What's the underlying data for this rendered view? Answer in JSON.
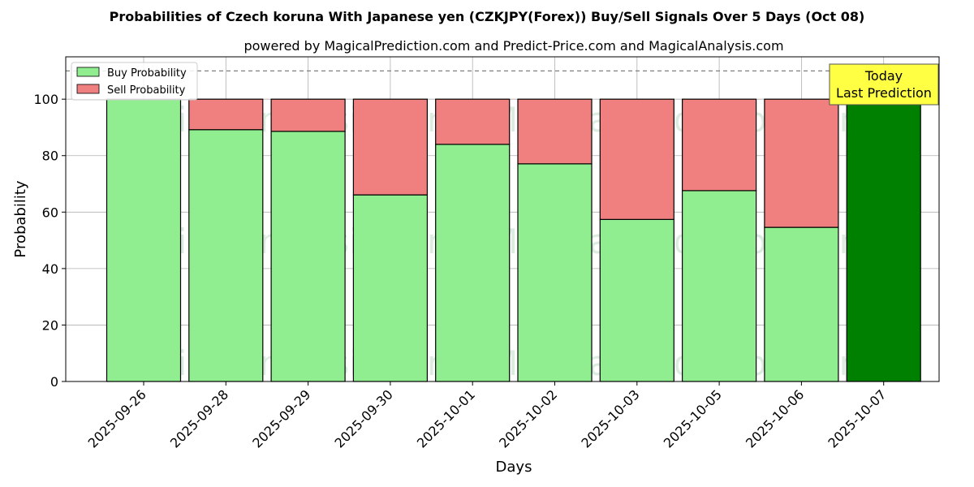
{
  "chart_data": {
    "type": "bar",
    "stacked": true,
    "title": "Probabilities of Czech koruna With Japanese yen (CZKJPY(Forex)) Buy/Sell Signals Over 5 Days (Oct 08)",
    "subtitle": "powered by MagicalPrediction.com and Predict-Price.com and MagicalAnalysis.com",
    "xlabel": "Days",
    "ylabel": "Probability",
    "ylim": [
      0,
      115
    ],
    "yticks": [
      0,
      20,
      40,
      60,
      80,
      100
    ],
    "grid": true,
    "legend_position": "top-left",
    "reference_line": 110,
    "categories": [
      "2025-09-26",
      "2025-09-28",
      "2025-09-29",
      "2025-09-30",
      "2025-10-01",
      "2025-10-02",
      "2025-10-03",
      "2025-10-05",
      "2025-10-06",
      "2025-10-07"
    ],
    "series": [
      {
        "name": "Buy Probability",
        "color": "#90ee90",
        "values": [
          100,
          89.2,
          88.6,
          66.1,
          84.0,
          77.1,
          57.4,
          67.6,
          54.6,
          100
        ]
      },
      {
        "name": "Sell Probability",
        "color": "#f08080",
        "values": [
          0,
          10.8,
          11.4,
          33.9,
          16.0,
          22.9,
          42.6,
          32.4,
          45.4,
          0
        ]
      }
    ],
    "highlight": {
      "index": 9,
      "color": "#008000"
    },
    "annotation": {
      "line1": "Today",
      "line2": "Last Prediction",
      "background": "#ffff44"
    },
    "watermarks": [
      "MagicalAnalysis.com",
      "MagicalPrediction.com",
      "MagicalAnalysis.com",
      "MagicalPrediction.com",
      "MagicalAnalysis.com",
      "MagicalPrediction.com"
    ]
  }
}
